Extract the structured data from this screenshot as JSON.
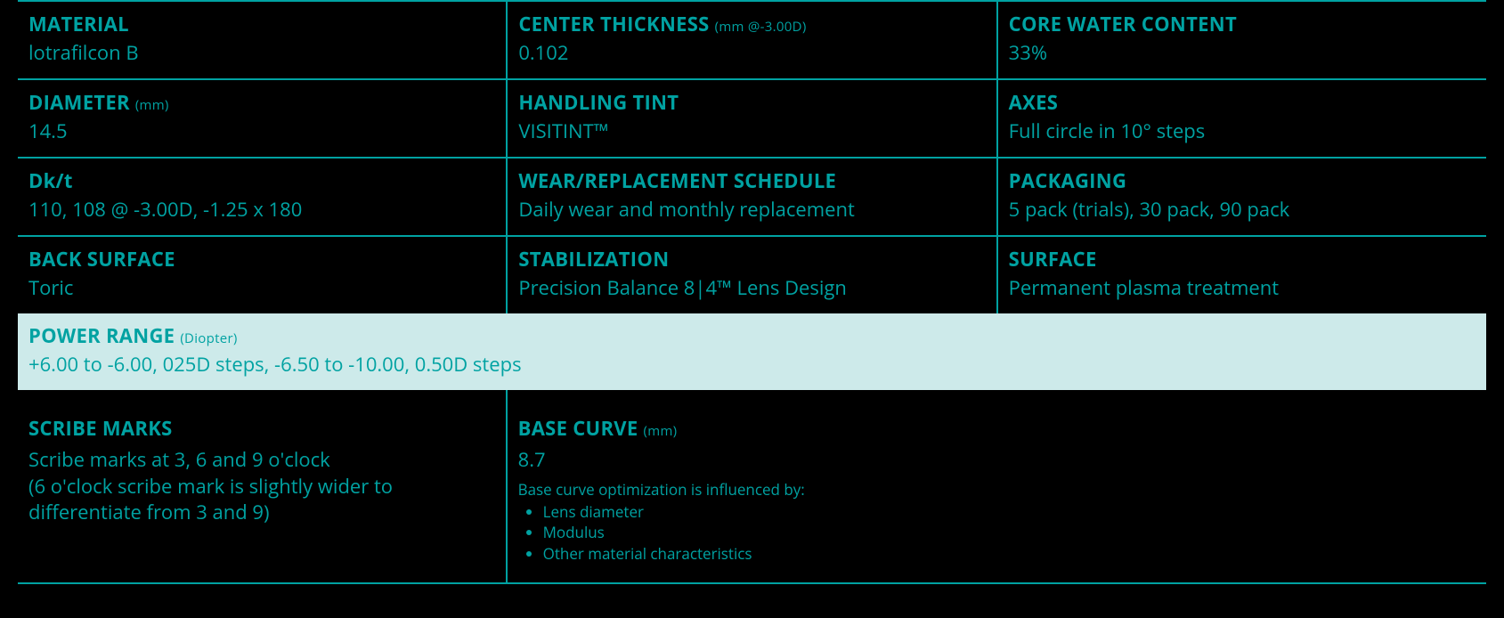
{
  "colors": {
    "background": "#000000",
    "accent": "#00a2a2",
    "highlight_bg": "#cdeaea",
    "border": "#00a2a2"
  },
  "typography": {
    "label_fontsize": 22,
    "label_weight": 700,
    "subscript_fontsize": 15,
    "value_fontsize": 22,
    "small_fontsize": 17
  },
  "grid": {
    "rows": [
      [
        {
          "label": "MATERIAL",
          "sub": "",
          "value": "lotrafilcon B"
        },
        {
          "label": "CENTER THICKNESS",
          "sub": "(mm @-3.00D)",
          "value": "0.102"
        },
        {
          "label": "CORE WATER CONTENT",
          "sub": "",
          "value": "33%"
        }
      ],
      [
        {
          "label": "DIAMETER",
          "sub": "(mm)",
          "value": "14.5"
        },
        {
          "label": "HANDLING TINT",
          "sub": "",
          "value": "VISITINT™"
        },
        {
          "label": "AXES",
          "sub": "",
          "value": "Full circle in 10° steps"
        }
      ],
      [
        {
          "label": "Dk/t",
          "sub": "",
          "value": "110, 108 @ -3.00D, -1.25 x 180"
        },
        {
          "label": "WEAR/REPLACEMENT SCHEDULE",
          "sub": "",
          "value": "Daily wear and monthly replacement"
        },
        {
          "label": "PACKAGING",
          "sub": "",
          "value": "5 pack (trials), 30 pack, 90 pack"
        }
      ],
      [
        {
          "label": "BACK SURFACE",
          "sub": "",
          "value": "Toric"
        },
        {
          "label": "STABILIZATION",
          "sub": "",
          "value": "Precision Balance 8|4™ Lens Design"
        },
        {
          "label": "SURFACE",
          "sub": "",
          "value": "Permanent plasma treatment"
        }
      ]
    ]
  },
  "power": {
    "label": "POWER RANGE",
    "sub": "(Diopter)",
    "value": "+6.00 to -6.00, 025D steps, -6.50 to -10.00, 0.50D steps"
  },
  "bottom": {
    "scribe": {
      "label": "SCRIBE MARKS",
      "line1": "Scribe marks at 3, 6 and 9 o'clock",
      "line2": "(6 o'clock scribe mark is slightly wider to",
      "line3": "differentiate from 3 and 9)"
    },
    "base_curve": {
      "label": "BASE CURVE",
      "sub": "(mm)",
      "value": "8.7",
      "note": "Base curve optimization is influenced by:",
      "bullets": [
        "Lens diameter",
        "Modulus",
        "Other material characteristics"
      ]
    }
  }
}
